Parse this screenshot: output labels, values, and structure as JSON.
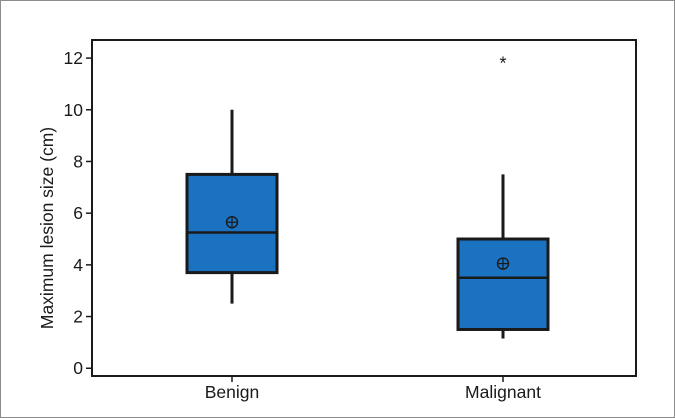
{
  "chart_data": {
    "type": "box",
    "title": "",
    "xlabel": "",
    "ylabel": "Maximum lesion size (cm)",
    "ylim": [
      -0.3,
      12.7
    ],
    "yticks": [
      0,
      2,
      4,
      6,
      8,
      10,
      12
    ],
    "grid": false,
    "legend": "none",
    "categories": [
      "Benign",
      "Malignant"
    ],
    "boxes": [
      {
        "category": "Benign",
        "whisker_low": 2.5,
        "q1": 3.7,
        "median": 5.25,
        "q3": 7.5,
        "whisker_high": 10.0,
        "mean": 5.65,
        "outliers": []
      },
      {
        "category": "Malignant",
        "whisker_low": 1.15,
        "q1": 1.5,
        "median": 3.5,
        "q3": 5.0,
        "whisker_high": 7.5,
        "mean": 4.05,
        "outliers": [
          11.95
        ]
      }
    ],
    "colors": {
      "box_fill": "#1a72c0",
      "line": "#1a1a1a",
      "mean_marker": "#1a1a1a"
    },
    "mean_marker": "circle-plus",
    "outlier_marker": "*"
  }
}
